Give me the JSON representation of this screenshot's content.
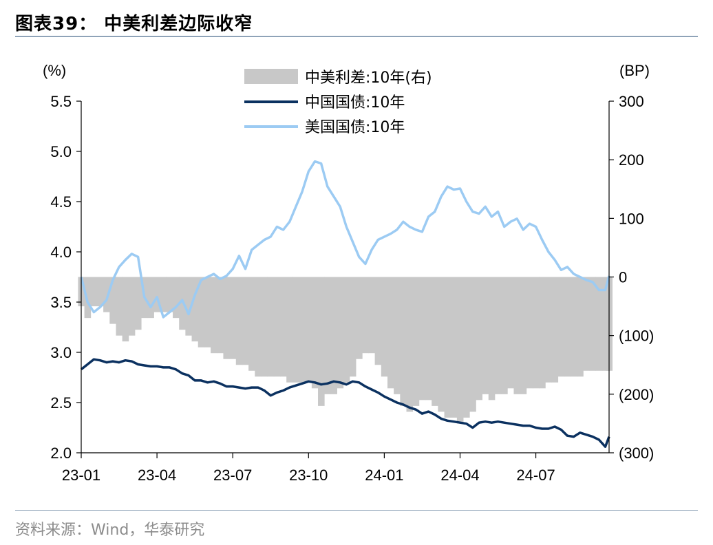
{
  "header": {
    "title": "图表39：  中美利差边际收窄"
  },
  "footer": {
    "source": "资料来源：Wind，华泰研究"
  },
  "chart_data": {
    "type": "line",
    "left_unit": "(%)",
    "right_unit": "(BP)",
    "ylim": [
      2.0,
      5.5
    ],
    "y2lim": [
      -300,
      300
    ],
    "y_ticks": [
      "5.5",
      "5.0",
      "4.5",
      "4.0",
      "3.5",
      "3.0",
      "2.5",
      "2.0"
    ],
    "y2_ticks": [
      "300",
      "200",
      "100",
      "0",
      "(100)",
      "(200)",
      "(300)"
    ],
    "x_ticks": [
      "23-01",
      "23-04",
      "23-07",
      "23-10",
      "24-01",
      "24-04",
      "24-07"
    ],
    "x_tick_months": [
      0,
      3,
      6,
      9,
      12,
      15,
      18
    ],
    "x_range_months": [
      0,
      20.9
    ],
    "legend": [
      {
        "name": "中美利差:10年(右)",
        "color": "#c8c8c8",
        "kind": "area"
      },
      {
        "name": "中国国债:10年",
        "color": "#0b3160",
        "kind": "line"
      },
      {
        "name": "美国国债:10年",
        "color": "#9ccbf3",
        "kind": "line"
      }
    ],
    "x_months": [
      0,
      0.25,
      0.5,
      0.75,
      1,
      1.25,
      1.5,
      1.75,
      2,
      2.25,
      2.5,
      2.75,
      3,
      3.25,
      3.5,
      3.75,
      4,
      4.25,
      4.5,
      4.75,
      5,
      5.25,
      5.5,
      5.75,
      6,
      6.25,
      6.5,
      6.75,
      7,
      7.25,
      7.5,
      7.75,
      8,
      8.25,
      8.5,
      8.75,
      9,
      9.25,
      9.5,
      9.75,
      10,
      10.25,
      10.5,
      10.75,
      11,
      11.25,
      11.5,
      11.75,
      12,
      12.25,
      12.5,
      12.75,
      13,
      13.25,
      13.5,
      13.75,
      14,
      14.25,
      14.5,
      14.75,
      15,
      15.25,
      15.5,
      15.75,
      16,
      16.25,
      16.5,
      16.75,
      17,
      17.25,
      17.5,
      17.75,
      18,
      18.25,
      18.5,
      18.75,
      19,
      19.25,
      19.5,
      19.75,
      20,
      20.25,
      20.5,
      20.75,
      20.9
    ],
    "series": [
      {
        "name": "中国国债:10年",
        "values": [
          2.83,
          2.88,
          2.93,
          2.92,
          2.9,
          2.91,
          2.9,
          2.92,
          2.91,
          2.88,
          2.87,
          2.86,
          2.86,
          2.85,
          2.85,
          2.83,
          2.79,
          2.77,
          2.72,
          2.72,
          2.7,
          2.71,
          2.69,
          2.66,
          2.66,
          2.65,
          2.64,
          2.65,
          2.65,
          2.62,
          2.57,
          2.6,
          2.62,
          2.65,
          2.67,
          2.69,
          2.71,
          2.7,
          2.68,
          2.69,
          2.71,
          2.7,
          2.68,
          2.71,
          2.7,
          2.66,
          2.63,
          2.6,
          2.56,
          2.53,
          2.5,
          2.48,
          2.45,
          2.43,
          2.39,
          2.41,
          2.38,
          2.34,
          2.32,
          2.31,
          2.3,
          2.29,
          2.25,
          2.3,
          2.31,
          2.3,
          2.31,
          2.3,
          2.29,
          2.28,
          2.27,
          2.27,
          2.25,
          2.24,
          2.24,
          2.26,
          2.23,
          2.17,
          2.16,
          2.2,
          2.18,
          2.16,
          2.13,
          2.06,
          2.16
        ]
      },
      {
        "name": "美国国债:10年",
        "values": [
          3.75,
          3.5,
          3.4,
          3.45,
          3.52,
          3.72,
          3.85,
          3.92,
          3.98,
          3.95,
          3.55,
          3.45,
          3.55,
          3.35,
          3.4,
          3.45,
          3.52,
          3.38,
          3.57,
          3.72,
          3.75,
          3.78,
          3.73,
          3.76,
          3.83,
          3.96,
          3.83,
          4.02,
          4.07,
          4.12,
          4.15,
          4.25,
          4.22,
          4.3,
          4.45,
          4.6,
          4.8,
          4.9,
          4.88,
          4.65,
          4.55,
          4.45,
          4.25,
          4.1,
          3.95,
          3.88,
          4.02,
          4.12,
          4.15,
          4.18,
          4.22,
          4.3,
          4.25,
          4.22,
          4.2,
          4.35,
          4.4,
          4.55,
          4.65,
          4.62,
          4.63,
          4.5,
          4.4,
          4.38,
          4.45,
          4.35,
          4.4,
          4.25,
          4.3,
          4.33,
          4.22,
          4.28,
          4.25,
          4.12,
          4.0,
          3.92,
          3.82,
          3.85,
          3.78,
          3.75,
          3.72,
          3.7,
          3.62,
          3.62,
          3.76
        ]
      },
      {
        "name": "中美利差:10年(右)",
        "values": [
          -50,
          -70,
          -50,
          -50,
          -60,
          -80,
          -100,
          -110,
          -100,
          -90,
          -70,
          -70,
          -60,
          -60,
          -60,
          -70,
          -90,
          -100,
          -110,
          -120,
          -120,
          -130,
          -130,
          -140,
          -140,
          -150,
          -150,
          -160,
          -170,
          -170,
          -170,
          -170,
          -170,
          -180,
          -180,
          -180,
          -180,
          -190,
          -220,
          -200,
          -200,
          -190,
          -180,
          -170,
          -140,
          -130,
          -130,
          -150,
          -170,
          -190,
          -200,
          -220,
          -230,
          -220,
          -210,
          -210,
          -220,
          -230,
          -240,
          -240,
          -250,
          -240,
          -230,
          -210,
          -200,
          -210,
          -200,
          -200,
          -190,
          -200,
          -200,
          -190,
          -190,
          -190,
          -180,
          -180,
          -170,
          -170,
          -170,
          -170,
          -160,
          -160,
          -160,
          -160,
          -160
        ]
      }
    ]
  }
}
